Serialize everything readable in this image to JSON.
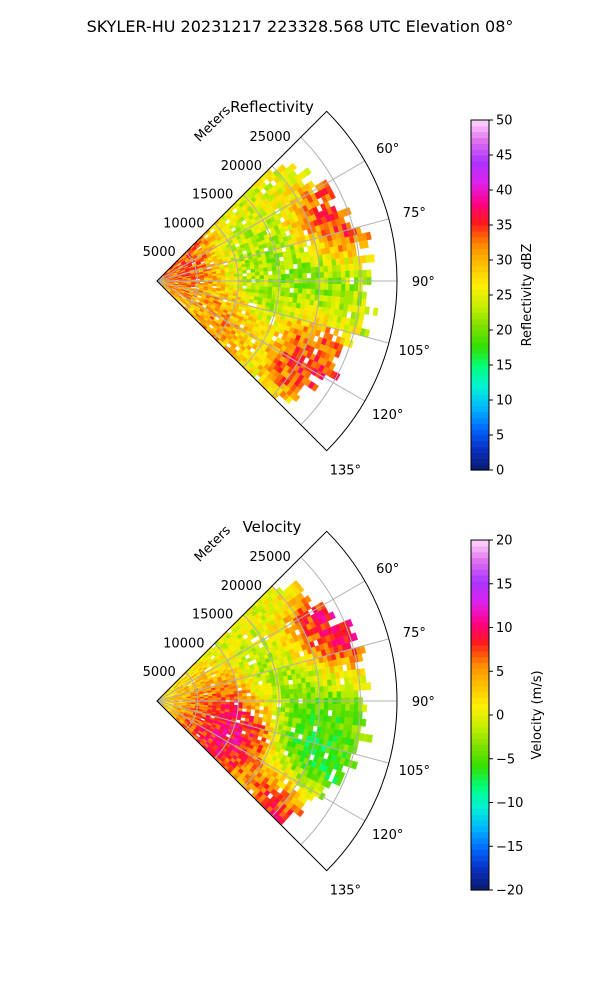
{
  "suptitle": "SKYLER-HU  20231217  223328.568 UTC Elevation 08°",
  "chart_data": [
    {
      "type": "heatmap",
      "title": "Reflectivity",
      "range_axis_label": "Meters",
      "range_ticks": [
        "5000",
        "10000",
        "15000",
        "20000",
        "25000"
      ],
      "range_tick_values": [
        5000,
        10000,
        15000,
        20000,
        25000
      ],
      "azimuth_ticks": [
        "60°",
        "75°",
        "90°",
        "105°",
        "120°",
        "135°"
      ],
      "azimuth_tick_values": [
        60,
        75,
        90,
        105,
        120,
        135
      ],
      "azimuth_range": [
        45,
        135
      ],
      "max_range_m": 29500,
      "grid": true,
      "colorbar": {
        "label": "Reflectivity dBZ",
        "ticks": [
          "0",
          "5",
          "10",
          "15",
          "20",
          "25",
          "30",
          "35",
          "40",
          "45",
          "50"
        ],
        "min": 0,
        "max": 50,
        "stops": [
          "#061a6b",
          "#0a2fbf",
          "#0066ff",
          "#00b4ff",
          "#00f0d8",
          "#00ff80",
          "#33e000",
          "#7fe000",
          "#c8f000",
          "#ffee00",
          "#ffc000",
          "#ff8800",
          "#ff1a1a",
          "#ff0088",
          "#dd22ee",
          "#aa33ff",
          "#e070ee",
          "#ffd8ff"
        ]
      }
    },
    {
      "type": "heatmap",
      "title": "Velocity",
      "range_axis_label": "Meters",
      "range_ticks": [
        "5000",
        "10000",
        "15000",
        "20000",
        "25000"
      ],
      "range_tick_values": [
        5000,
        10000,
        15000,
        20000,
        25000
      ],
      "azimuth_ticks": [
        "60°",
        "75°",
        "90°",
        "105°",
        "120°",
        "135°"
      ],
      "azimuth_tick_values": [
        60,
        75,
        90,
        105,
        120,
        135
      ],
      "azimuth_range": [
        45,
        135
      ],
      "max_range_m": 29500,
      "grid": true,
      "colorbar": {
        "label": "Velocity (m/s)",
        "ticks": [
          "−20",
          "−15",
          "−10",
          "−5",
          "0",
          "5",
          "10",
          "15",
          "20"
        ],
        "min": -20,
        "max": 20,
        "stops": [
          "#061a6b",
          "#0a2fbf",
          "#0066ff",
          "#00b4ff",
          "#00f0d8",
          "#00ff80",
          "#33e000",
          "#7fe000",
          "#c8f000",
          "#ffee00",
          "#ffc000",
          "#ff8800",
          "#ff1a1a",
          "#ff0088",
          "#dd22ee",
          "#aa33ff",
          "#e070ee",
          "#ffd8ff"
        ]
      }
    }
  ],
  "reflectivity_blobs": [
    {
      "az": 72,
      "range_m": 23500,
      "dbz": 38
    },
    {
      "az": 69,
      "range_m": 26500,
      "dbz": 36
    },
    {
      "az": 117,
      "range_m": 22000,
      "dbz": 39
    },
    {
      "az": 113,
      "range_m": 21000,
      "dbz": 36
    },
    {
      "az": 95,
      "range_m": 14500,
      "dbz": 20
    },
    {
      "az": 90,
      "range_m": 20000,
      "dbz": 19
    },
    {
      "az": 80,
      "range_m": 12000,
      "dbz": 22
    },
    {
      "az": 115,
      "range_m": 9000,
      "dbz": 34
    },
    {
      "az": 55,
      "range_m": 4000,
      "dbz": 37
    },
    {
      "az": 100,
      "range_m": 25000,
      "dbz": 21
    }
  ],
  "velocity_blobs": [
    {
      "az": 108,
      "range_m": 10000,
      "vel": 14
    },
    {
      "az": 115,
      "range_m": 8000,
      "vel": 12
    },
    {
      "az": 100,
      "range_m": 6000,
      "vel": 4
    },
    {
      "az": 80,
      "range_m": 15000,
      "vel": -3
    },
    {
      "az": 72,
      "range_m": 22000,
      "vel": 11
    },
    {
      "az": 66,
      "range_m": 25500,
      "vel": 14
    },
    {
      "az": 85,
      "range_m": 20000,
      "vel": -5
    },
    {
      "az": 100,
      "range_m": 20000,
      "vel": -8
    },
    {
      "az": 118,
      "range_m": 21000,
      "vel": -12
    },
    {
      "az": 128,
      "range_m": 20000,
      "vel": 17
    }
  ]
}
